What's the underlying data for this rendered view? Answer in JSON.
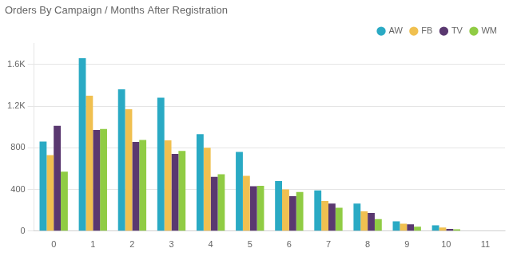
{
  "chart_data": {
    "type": "bar",
    "title": "Orders By Campaign / Months After Registration",
    "categories": [
      0,
      1,
      2,
      3,
      4,
      5,
      6,
      7,
      8,
      9,
      10,
      11
    ],
    "series": [
      {
        "name": "AW",
        "color": "#2aaac4",
        "values": [
          860,
          1660,
          1360,
          1280,
          930,
          760,
          480,
          390,
          265,
          95,
          55,
          0
        ]
      },
      {
        "name": "FB",
        "color": "#f0c050",
        "values": [
          730,
          1300,
          1170,
          870,
          800,
          530,
          400,
          290,
          190,
          72,
          35,
          0
        ]
      },
      {
        "name": "TV",
        "color": "#5a3870",
        "values": [
          1010,
          970,
          855,
          740,
          520,
          430,
          335,
          265,
          175,
          65,
          22,
          0
        ]
      },
      {
        "name": "WM",
        "color": "#90cc44",
        "values": [
          570,
          980,
          875,
          770,
          545,
          435,
          375,
          225,
          115,
          42,
          18,
          0
        ]
      }
    ],
    "ylim": [
      0,
      1800
    ],
    "yticks": [
      0,
      400,
      800,
      {
        "value": 1200,
        "label": "1.2K"
      },
      {
        "value": 1600,
        "label": "1.6K"
      }
    ],
    "grid": true,
    "legend": "upper right"
  }
}
